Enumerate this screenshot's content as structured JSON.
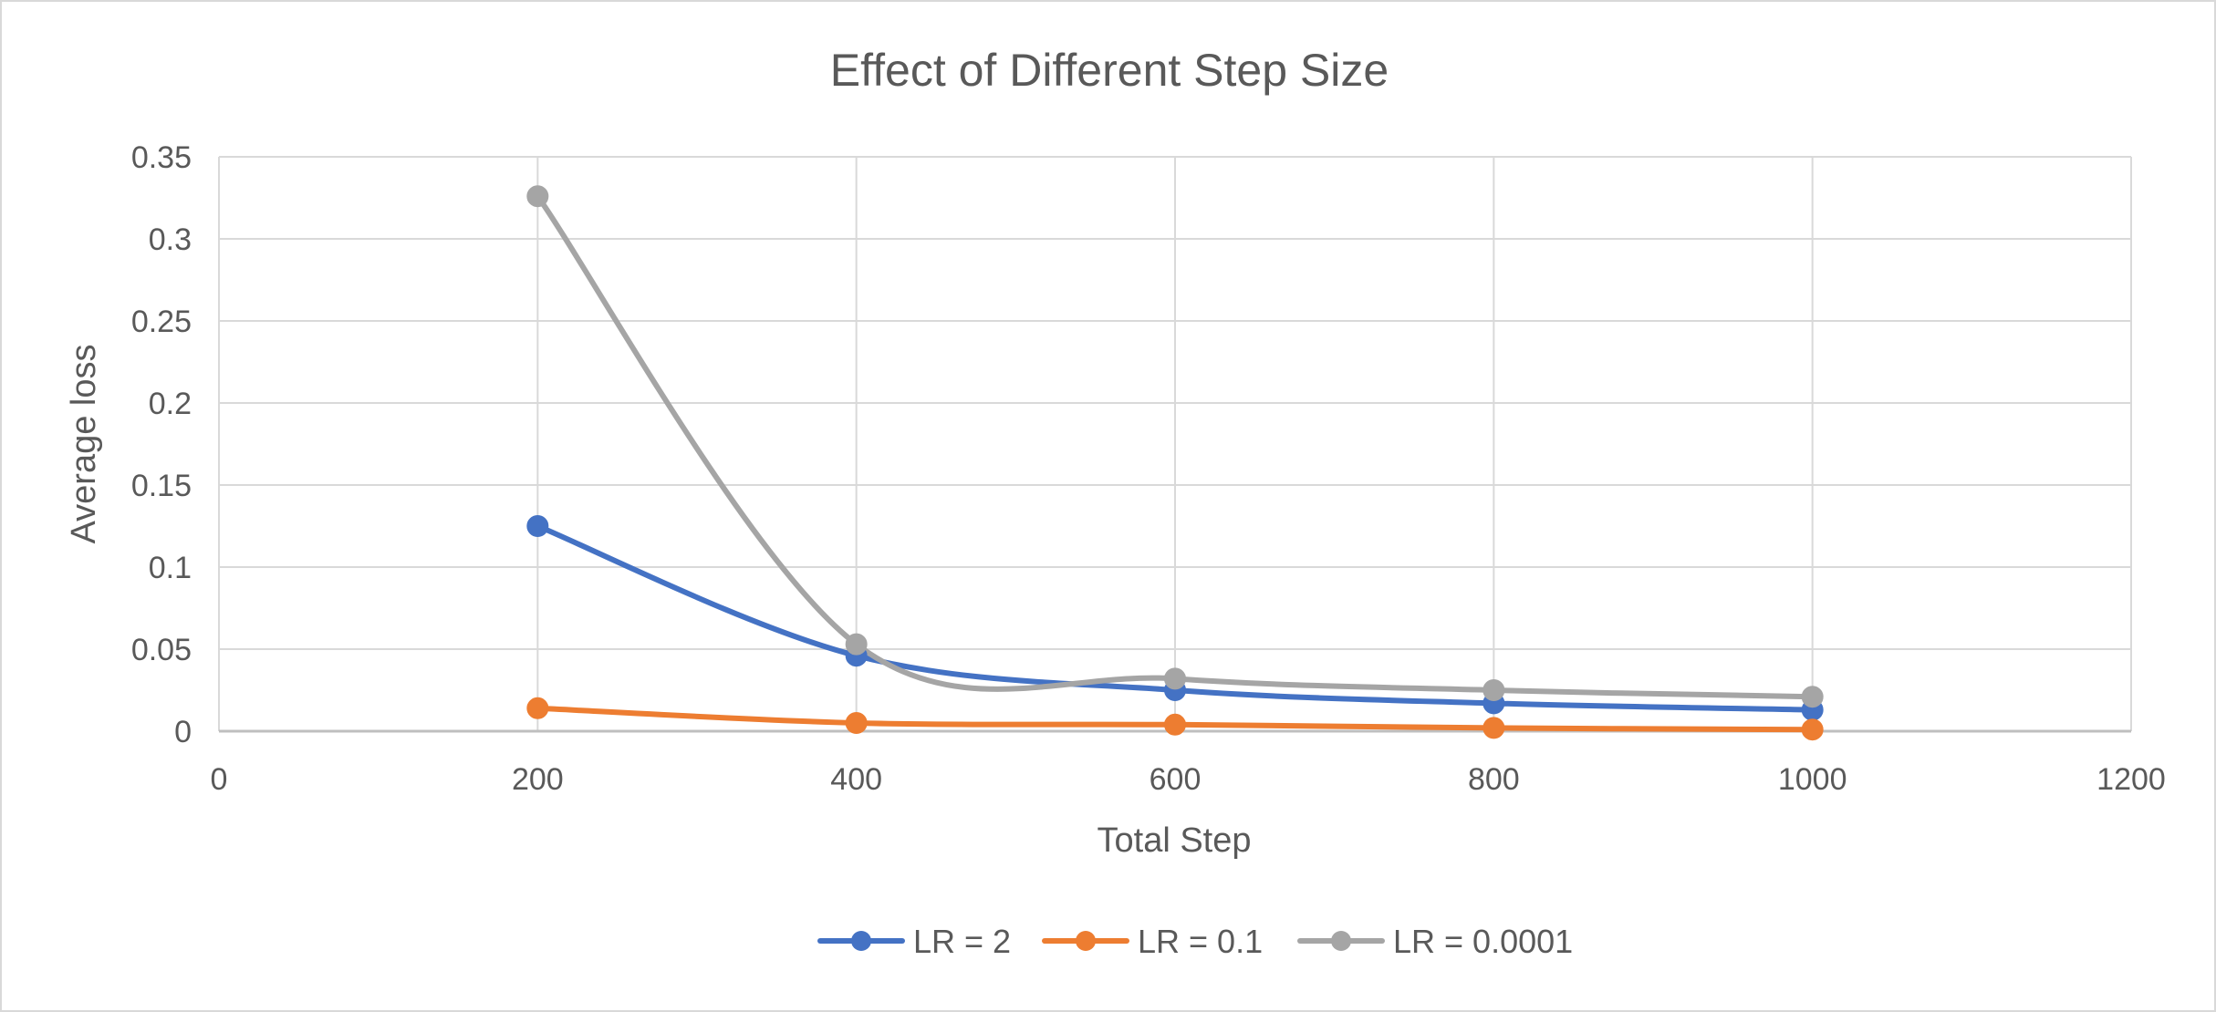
{
  "chart_data": {
    "type": "line",
    "title": "Effect of Different Step Size",
    "xlabel": "Total Step",
    "ylabel": "Average loss",
    "xlim": [
      0,
      1200
    ],
    "ylim": [
      0,
      0.35
    ],
    "x_ticks": [
      "0",
      "200",
      "400",
      "600",
      "800",
      "1000",
      "1200"
    ],
    "y_ticks": [
      "0",
      "0.05",
      "0.1",
      "0.15",
      "0.2",
      "0.25",
      "0.3",
      "0.35"
    ],
    "x_tick_values": [
      0,
      200,
      400,
      600,
      800,
      1000,
      1200
    ],
    "y_tick_values": [
      0,
      0.05,
      0.1,
      0.15,
      0.2,
      0.25,
      0.3,
      0.35
    ],
    "grid": true,
    "smooth_lines": true,
    "legend_position": "bottom",
    "x": [
      200,
      400,
      600,
      800,
      1000
    ],
    "series": [
      {
        "name": "LR = 2",
        "color": "#4472C4",
        "values": [
          0.125,
          0.046,
          0.025,
          0.017,
          0.013
        ]
      },
      {
        "name": "LR = 0.1",
        "color": "#ED7D31",
        "values": [
          0.014,
          0.005,
          0.004,
          0.002,
          0.001
        ]
      },
      {
        "name": "LR = 0.0001",
        "color": "#A5A5A5",
        "values": [
          0.326,
          0.053,
          0.032,
          0.025,
          0.021
        ]
      }
    ]
  }
}
